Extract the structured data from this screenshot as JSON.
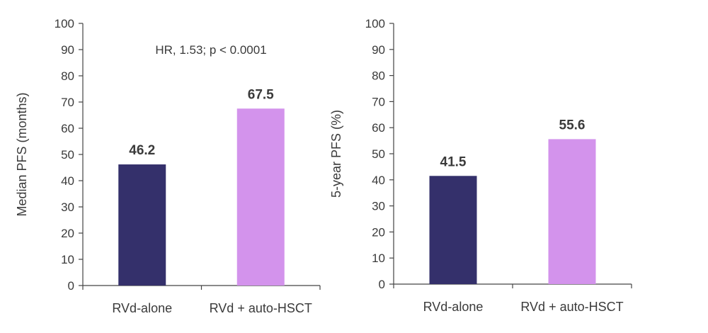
{
  "chart_data": [
    {
      "type": "bar",
      "categories": [
        "RVd-alone",
        "RVd + auto-HSCT"
      ],
      "values": [
        46.2,
        67.5
      ],
      "value_labels": [
        "46.2",
        "67.5"
      ],
      "colors": [
        "#34306b",
        "#d393ec"
      ],
      "title": "",
      "xlabel": "",
      "ylabel": "Median PFS (months)",
      "ylim": [
        0,
        100
      ],
      "yticks": [
        0,
        10,
        20,
        30,
        40,
        50,
        60,
        70,
        80,
        90,
        100
      ],
      "annotation": "HR, 1.53; p < 0.0001",
      "grid": false
    },
    {
      "type": "bar",
      "categories": [
        "RVd-alone",
        "RVd + auto-HSCT"
      ],
      "values": [
        41.5,
        55.6
      ],
      "value_labels": [
        "41.5",
        "55.6"
      ],
      "colors": [
        "#34306b",
        "#d393ec"
      ],
      "title": "",
      "xlabel": "",
      "ylabel": "5-year PFS (%)",
      "ylim": [
        0,
        100
      ],
      "yticks": [
        0,
        10,
        20,
        30,
        40,
        50,
        60,
        70,
        80,
        90,
        100
      ],
      "grid": false
    }
  ]
}
